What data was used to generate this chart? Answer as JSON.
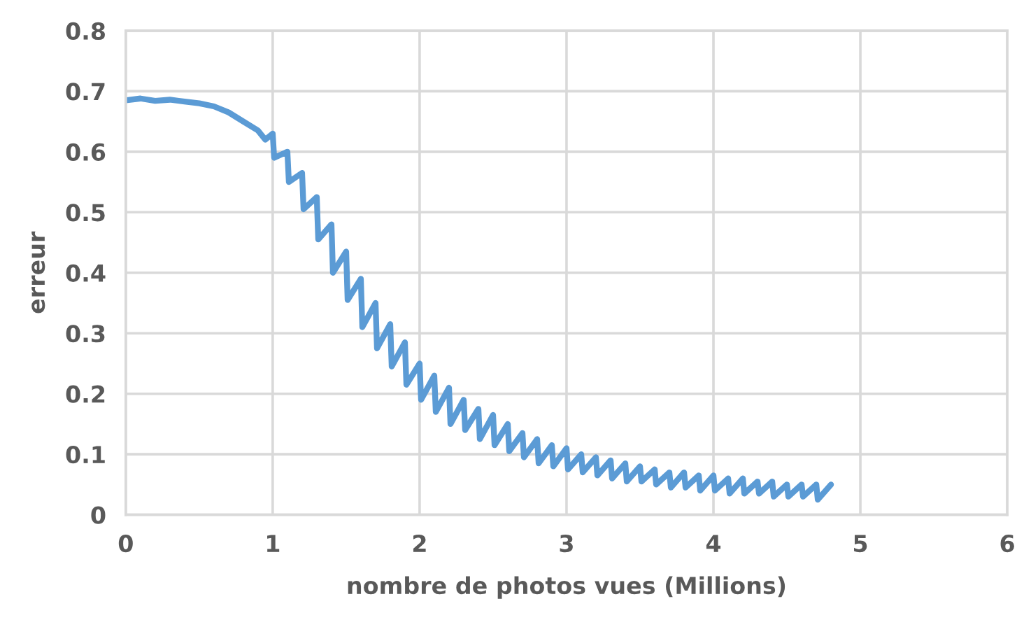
{
  "chart_data": {
    "type": "line",
    "xlabel": "nombre de photos vues (Millions)",
    "ylabel": "erreur",
    "xlim": [
      0,
      6
    ],
    "ylim": [
      0,
      0.8
    ],
    "xticks": [
      0,
      1,
      2,
      3,
      4,
      5,
      6
    ],
    "yticks": [
      0,
      0.1,
      0.2,
      0.3,
      0.4,
      0.5,
      0.6,
      0.7,
      0.8
    ],
    "grid": true,
    "series": [
      {
        "color": "#5b9bd5",
        "x": [
          0,
          0.1,
          0.2,
          0.3,
          0.4,
          0.5,
          0.6,
          0.7,
          0.8,
          0.9,
          0.95,
          1.0,
          1.01,
          1.1,
          1.11,
          1.2,
          1.21,
          1.3,
          1.31,
          1.4,
          1.41,
          1.5,
          1.51,
          1.6,
          1.61,
          1.7,
          1.71,
          1.8,
          1.81,
          1.9,
          1.91,
          2.0,
          2.01,
          2.1,
          2.11,
          2.2,
          2.21,
          2.3,
          2.31,
          2.4,
          2.41,
          2.5,
          2.51,
          2.6,
          2.61,
          2.7,
          2.71,
          2.8,
          2.81,
          2.9,
          2.91,
          3.0,
          3.01,
          3.1,
          3.11,
          3.2,
          3.21,
          3.3,
          3.31,
          3.4,
          3.41,
          3.5,
          3.51,
          3.6,
          3.61,
          3.7,
          3.71,
          3.8,
          3.81,
          3.9,
          3.91,
          4.0,
          4.01,
          4.1,
          4.11,
          4.2,
          4.21,
          4.3,
          4.31,
          4.4,
          4.41,
          4.5,
          4.51,
          4.6,
          4.61,
          4.7,
          4.71,
          4.8
        ],
        "values": [
          0.685,
          0.688,
          0.684,
          0.686,
          0.683,
          0.68,
          0.675,
          0.665,
          0.65,
          0.635,
          0.62,
          0.63,
          0.59,
          0.6,
          0.55,
          0.565,
          0.505,
          0.525,
          0.455,
          0.48,
          0.4,
          0.435,
          0.355,
          0.39,
          0.31,
          0.35,
          0.275,
          0.315,
          0.245,
          0.285,
          0.215,
          0.25,
          0.19,
          0.23,
          0.17,
          0.21,
          0.15,
          0.19,
          0.14,
          0.175,
          0.125,
          0.165,
          0.115,
          0.15,
          0.105,
          0.135,
          0.095,
          0.125,
          0.085,
          0.115,
          0.08,
          0.11,
          0.075,
          0.1,
          0.07,
          0.095,
          0.065,
          0.09,
          0.06,
          0.085,
          0.055,
          0.08,
          0.055,
          0.075,
          0.05,
          0.07,
          0.045,
          0.07,
          0.045,
          0.065,
          0.04,
          0.065,
          0.04,
          0.06,
          0.035,
          0.06,
          0.035,
          0.055,
          0.035,
          0.055,
          0.03,
          0.05,
          0.03,
          0.05,
          0.03,
          0.05,
          0.025,
          0.05
        ]
      }
    ]
  }
}
